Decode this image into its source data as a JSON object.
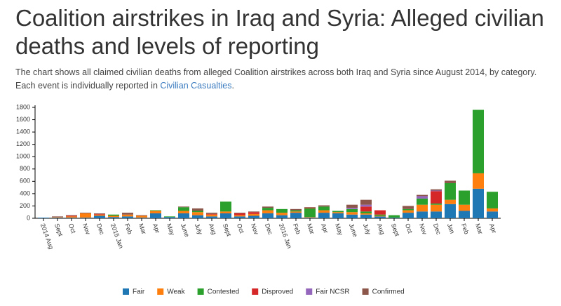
{
  "title": "Coalition airstrikes in Iraq and Syria: Alleged civilian deaths and levels of reporting",
  "description": {
    "text": "The chart shows all claimed civilian deaths from alleged Coalition airstrikes across both Iraq and Syria since August 2014, by category. Each event is individually reported in ",
    "link": "Civilian Casualties",
    "end": "."
  },
  "chart_data": {
    "type": "stacked-bar",
    "categories": [
      "2014 Aug",
      "Sept",
      "Oct",
      "Nov",
      "Dec",
      "2015 Jan",
      "Feb",
      "Mar",
      "Apr",
      "May",
      "June",
      "July",
      "Aug",
      "Sept",
      "Oct",
      "Nov",
      "Dec",
      "2016 Jan",
      "Feb",
      "Mar",
      "Apr",
      "May",
      "June",
      "July",
      "Aug",
      "Sept",
      "Oct",
      "Nov",
      "Dec",
      "Jan",
      "Feb",
      "Mar",
      "Apr"
    ],
    "series": [
      {
        "name": "Fair",
        "color": "#1f77b4",
        "values": [
          10,
          10,
          10,
          10,
          40,
          20,
          30,
          10,
          80,
          20,
          80,
          50,
          30,
          80,
          30,
          40,
          80,
          50,
          90,
          10,
          90,
          80,
          60,
          60,
          30,
          10,
          90,
          110,
          110,
          230,
          120,
          480,
          110
        ]
      },
      {
        "name": "Weak",
        "color": "#ff7f0e",
        "values": [
          0,
          10,
          20,
          70,
          20,
          20,
          30,
          30,
          40,
          0,
          40,
          50,
          30,
          30,
          20,
          30,
          50,
          40,
          20,
          10,
          40,
          20,
          40,
          20,
          10,
          0,
          40,
          110,
          110,
          70,
          100,
          250,
          50
        ]
      },
      {
        "name": "Contested",
        "color": "#2ca02c",
        "values": [
          0,
          0,
          0,
          0,
          0,
          20,
          0,
          0,
          10,
          10,
          60,
          20,
          0,
          160,
          0,
          0,
          40,
          60,
          20,
          140,
          60,
          20,
          50,
          30,
          20,
          40,
          20,
          100,
          20,
          270,
          230,
          1030,
          270
        ]
      },
      {
        "name": "Disproved",
        "color": "#d62728",
        "values": [
          0,
          0,
          10,
          0,
          10,
          0,
          0,
          0,
          0,
          0,
          0,
          0,
          10,
          0,
          30,
          30,
          0,
          0,
          0,
          10,
          0,
          0,
          0,
          80,
          70,
          0,
          0,
          0,
          200,
          0,
          0,
          0,
          0
        ]
      },
      {
        "name": "Fair NCSR",
        "color": "#9467bd",
        "values": [
          0,
          0,
          0,
          0,
          0,
          0,
          0,
          0,
          0,
          0,
          0,
          0,
          0,
          0,
          0,
          0,
          0,
          0,
          0,
          0,
          0,
          0,
          20,
          30,
          0,
          0,
          0,
          40,
          10,
          0,
          0,
          0,
          0
        ]
      },
      {
        "name": "Confirmed",
        "color": "#8c564b",
        "values": [
          0,
          10,
          10,
          10,
          10,
          0,
          30,
          10,
          0,
          0,
          10,
          40,
          20,
          0,
          10,
          10,
          20,
          0,
          20,
          10,
          20,
          0,
          50,
          80,
          0,
          0,
          50,
          20,
          20,
          40,
          0,
          0,
          0
        ]
      }
    ],
    "ylim": [
      0,
      1800
    ],
    "yticks": [
      0,
      200,
      400,
      600,
      800,
      1000,
      1200,
      1400,
      1600,
      1800
    ],
    "grid": false,
    "legend": "bottom"
  }
}
